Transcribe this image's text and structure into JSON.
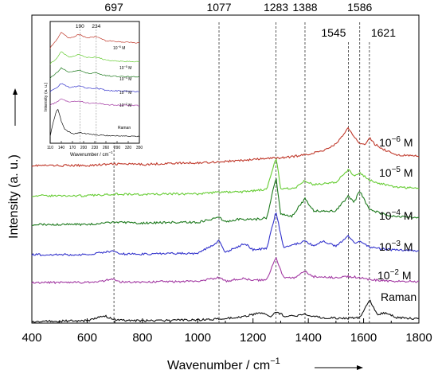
{
  "chart_data": {
    "type": "line",
    "xlabel": "Wavenumber / cm",
    "xlabel_sup": "−1",
    "ylabel": "Intensity (a. u.)",
    "xlim": [
      400,
      1800
    ],
    "x_ticks": [
      "400",
      "600",
      "800",
      "1000",
      "1200",
      "1400",
      "1600",
      "1800"
    ],
    "peak_markers": [
      {
        "x": 697,
        "label": "697"
      },
      {
        "x": 1077,
        "label": "1077"
      },
      {
        "x": 1283,
        "label": "1283"
      },
      {
        "x": 1388,
        "label": "1388"
      },
      {
        "x": 1545,
        "label": "1545"
      },
      {
        "x": 1586,
        "label": "1586"
      },
      {
        "x": 1621,
        "label": "1621"
      }
    ],
    "series": [
      {
        "name": "10",
        "sup": "−6",
        "unit": "M",
        "color": "#c0392b",
        "points": [
          [
            400,
            0.3
          ],
          [
            600,
            0.3
          ],
          [
            700,
            0.33
          ],
          [
            800,
            0.32
          ],
          [
            900,
            0.34
          ],
          [
            1000,
            0.35
          ],
          [
            1077,
            0.37
          ],
          [
            1150,
            0.39
          ],
          [
            1200,
            0.41
          ],
          [
            1250,
            0.43
          ],
          [
            1283,
            0.44
          ],
          [
            1320,
            0.45
          ],
          [
            1388,
            0.5
          ],
          [
            1450,
            0.57
          ],
          [
            1500,
            0.7
          ],
          [
            1530,
            0.9
          ],
          [
            1545,
            1.0
          ],
          [
            1565,
            0.82
          ],
          [
            1586,
            0.72
          ],
          [
            1610,
            0.7
          ],
          [
            1621,
            0.82
          ],
          [
            1640,
            0.7
          ],
          [
            1680,
            0.58
          ],
          [
            1720,
            0.5
          ],
          [
            1800,
            0.47
          ]
        ]
      },
      {
        "name": "10",
        "sup": "−5",
        "unit": "M",
        "color": "#66cc33",
        "points": [
          [
            400,
            0.3
          ],
          [
            600,
            0.3
          ],
          [
            697,
            0.33
          ],
          [
            800,
            0.32
          ],
          [
            900,
            0.33
          ],
          [
            1000,
            0.33
          ],
          [
            1077,
            0.36
          ],
          [
            1150,
            0.36
          ],
          [
            1200,
            0.38
          ],
          [
            1250,
            0.4
          ],
          [
            1283,
            0.92
          ],
          [
            1300,
            0.42
          ],
          [
            1350,
            0.42
          ],
          [
            1388,
            0.55
          ],
          [
            1420,
            0.48
          ],
          [
            1500,
            0.52
          ],
          [
            1545,
            0.72
          ],
          [
            1565,
            0.62
          ],
          [
            1586,
            0.68
          ],
          [
            1620,
            0.55
          ],
          [
            1700,
            0.45
          ],
          [
            1800,
            0.42
          ]
        ]
      },
      {
        "name": "10",
        "sup": "−4",
        "unit": "M",
        "color": "#1e7a1e",
        "points": [
          [
            400,
            0.3
          ],
          [
            600,
            0.3
          ],
          [
            697,
            0.33
          ],
          [
            800,
            0.32
          ],
          [
            900,
            0.33
          ],
          [
            1000,
            0.33
          ],
          [
            1077,
            0.4
          ],
          [
            1100,
            0.34
          ],
          [
            1150,
            0.38
          ],
          [
            1200,
            0.37
          ],
          [
            1250,
            0.4
          ],
          [
            1283,
            1.0
          ],
          [
            1300,
            0.45
          ],
          [
            1340,
            0.42
          ],
          [
            1388,
            0.68
          ],
          [
            1420,
            0.5
          ],
          [
            1500,
            0.5
          ],
          [
            1545,
            0.72
          ],
          [
            1565,
            0.62
          ],
          [
            1586,
            0.8
          ],
          [
            1620,
            0.52
          ],
          [
            1700,
            0.42
          ],
          [
            1800,
            0.4
          ]
        ]
      },
      {
        "name": "10",
        "sup": "−3",
        "unit": "M",
        "color": "#3333cc",
        "points": [
          [
            400,
            0.3
          ],
          [
            600,
            0.3
          ],
          [
            697,
            0.36
          ],
          [
            720,
            0.31
          ],
          [
            800,
            0.31
          ],
          [
            900,
            0.32
          ],
          [
            1000,
            0.32
          ],
          [
            1077,
            0.52
          ],
          [
            1100,
            0.34
          ],
          [
            1170,
            0.48
          ],
          [
            1200,
            0.38
          ],
          [
            1250,
            0.4
          ],
          [
            1283,
            1.0
          ],
          [
            1310,
            0.42
          ],
          [
            1340,
            0.45
          ],
          [
            1388,
            0.52
          ],
          [
            1420,
            0.44
          ],
          [
            1450,
            0.52
          ],
          [
            1500,
            0.44
          ],
          [
            1545,
            0.6
          ],
          [
            1570,
            0.48
          ],
          [
            1586,
            0.52
          ],
          [
            1620,
            0.42
          ],
          [
            1700,
            0.38
          ],
          [
            1800,
            0.36
          ]
        ]
      },
      {
        "name": "10",
        "sup": "−2",
        "unit": "M",
        "color": "#a33aa3",
        "points": [
          [
            400,
            0.3
          ],
          [
            600,
            0.3
          ],
          [
            697,
            0.36
          ],
          [
            720,
            0.31
          ],
          [
            800,
            0.31
          ],
          [
            900,
            0.32
          ],
          [
            1000,
            0.32
          ],
          [
            1077,
            0.4
          ],
          [
            1100,
            0.33
          ],
          [
            1170,
            0.38
          ],
          [
            1200,
            0.34
          ],
          [
            1250,
            0.36
          ],
          [
            1283,
            0.8
          ],
          [
            1310,
            0.4
          ],
          [
            1350,
            0.4
          ],
          [
            1388,
            0.52
          ],
          [
            1420,
            0.42
          ],
          [
            1500,
            0.4
          ],
          [
            1545,
            0.42
          ],
          [
            1586,
            0.4
          ],
          [
            1620,
            0.36
          ],
          [
            1700,
            0.33
          ],
          [
            1800,
            0.32
          ]
        ]
      },
      {
        "name": "Raman",
        "sup": "",
        "unit": "",
        "color": "#111111",
        "points": [
          [
            400,
            0.3
          ],
          [
            600,
            0.32
          ],
          [
            660,
            0.45
          ],
          [
            697,
            0.35
          ],
          [
            730,
            0.33
          ],
          [
            800,
            0.32
          ],
          [
            900,
            0.33
          ],
          [
            1000,
            0.34
          ],
          [
            1077,
            0.36
          ],
          [
            1150,
            0.4
          ],
          [
            1230,
            0.52
          ],
          [
            1260,
            0.42
          ],
          [
            1283,
            0.55
          ],
          [
            1320,
            0.42
          ],
          [
            1360,
            0.45
          ],
          [
            1388,
            0.48
          ],
          [
            1450,
            0.4
          ],
          [
            1500,
            0.38
          ],
          [
            1545,
            0.38
          ],
          [
            1586,
            0.4
          ],
          [
            1621,
            0.85
          ],
          [
            1650,
            0.48
          ],
          [
            1680,
            0.52
          ],
          [
            1720,
            0.4
          ],
          [
            1800,
            0.36
          ]
        ]
      }
    ],
    "inset": {
      "xlabel": "Wavenumber / cm",
      "xlabel_sup": "−1",
      "ylabel": "Intensity (a. u.)",
      "xlim": [
        110,
        350
      ],
      "x_ticks": [
        "110",
        "140",
        "170",
        "200",
        "230",
        "260",
        "290",
        "320",
        "350"
      ],
      "peak_markers": [
        {
          "x": 190,
          "label": "190"
        },
        {
          "x": 234,
          "label": "234"
        }
      ],
      "series": [
        {
          "name": "10",
          "sup": "−6",
          "unit": "M",
          "color": "#c0392b",
          "points": [
            [
              110,
              0.4
            ],
            [
              125,
              0.6
            ],
            [
              140,
              0.9
            ],
            [
              160,
              0.7
            ],
            [
              190,
              0.82
            ],
            [
              210,
              0.7
            ],
            [
              234,
              0.76
            ],
            [
              260,
              0.62
            ],
            [
              300,
              0.58
            ],
            [
              350,
              0.55
            ]
          ]
        },
        {
          "name": "10",
          "sup": "−5",
          "unit": "M",
          "color": "#66cc33",
          "points": [
            [
              110,
              0.4
            ],
            [
              125,
              0.55
            ],
            [
              140,
              0.8
            ],
            [
              160,
              0.62
            ],
            [
              190,
              0.7
            ],
            [
              210,
              0.6
            ],
            [
              234,
              0.62
            ],
            [
              260,
              0.52
            ],
            [
              300,
              0.48
            ],
            [
              350,
              0.46
            ]
          ]
        },
        {
          "name": "10",
          "sup": "−4",
          "unit": "M",
          "color": "#1e7a1e",
          "points": [
            [
              110,
              0.4
            ],
            [
              125,
              0.55
            ],
            [
              140,
              0.75
            ],
            [
              160,
              0.6
            ],
            [
              190,
              0.66
            ],
            [
              210,
              0.56
            ],
            [
              234,
              0.58
            ],
            [
              260,
              0.48
            ],
            [
              300,
              0.45
            ],
            [
              350,
              0.44
            ]
          ]
        },
        {
          "name": "10",
          "sup": "−3",
          "unit": "M",
          "color": "#3333cc",
          "points": [
            [
              110,
              0.4
            ],
            [
              125,
              0.52
            ],
            [
              140,
              0.7
            ],
            [
              160,
              0.56
            ],
            [
              190,
              0.6
            ],
            [
              210,
              0.52
            ],
            [
              234,
              0.53
            ],
            [
              260,
              0.44
            ],
            [
              300,
              0.42
            ],
            [
              350,
              0.4
            ]
          ]
        },
        {
          "name": "10",
          "sup": "−2",
          "unit": "M",
          "color": "#a33aa3",
          "points": [
            [
              110,
              0.4
            ],
            [
              125,
              0.5
            ],
            [
              140,
              0.65
            ],
            [
              160,
              0.52
            ],
            [
              190,
              0.55
            ],
            [
              210,
              0.48
            ],
            [
              234,
              0.48
            ],
            [
              260,
              0.42
            ],
            [
              300,
              0.4
            ],
            [
              350,
              0.38
            ]
          ]
        },
        {
          "name": "Raman",
          "sup": "",
          "unit": "",
          "color": "#111111",
          "points": [
            [
              110,
              0.35
            ],
            [
              120,
              0.7
            ],
            [
              130,
              0.95
            ],
            [
              140,
              0.65
            ],
            [
              150,
              0.48
            ],
            [
              170,
              0.4
            ],
            [
              190,
              0.42
            ],
            [
              230,
              0.38
            ],
            [
              260,
              0.36
            ],
            [
              300,
              0.35
            ],
            [
              350,
              0.34
            ]
          ]
        }
      ]
    }
  }
}
